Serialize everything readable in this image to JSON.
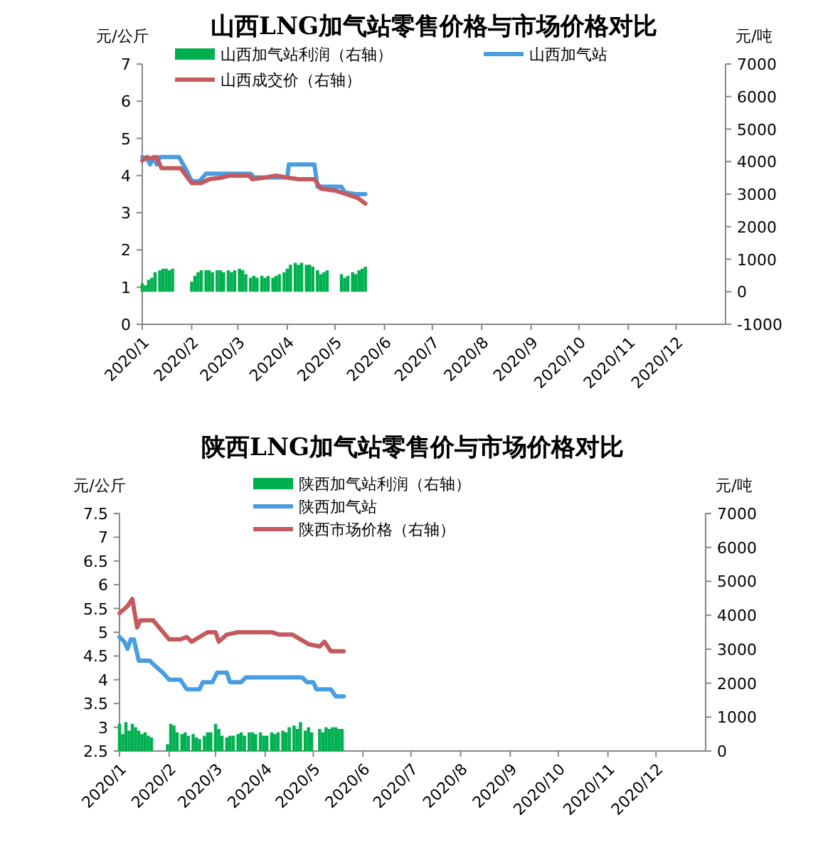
{
  "chart_data": [
    {
      "type": "line",
      "title": "山西LNG加气站零售价格与市场价格对比",
      "ylabel": "元/公斤",
      "y2label": "元/吨",
      "legend": "top",
      "xlim": [
        "2020-01-01",
        "2021-01-01"
      ],
      "xticks": [
        {
          "value": "2020-01-01",
          "label": "2020/1"
        },
        {
          "value": "2020-02-01",
          "label": "2020/2"
        },
        {
          "value": "2020-03-01",
          "label": "2020/3"
        },
        {
          "value": "2020-04-01",
          "label": "2020/4"
        },
        {
          "value": "2020-05-01",
          "label": "2020/5"
        },
        {
          "value": "2020-06-01",
          "label": "2020/6"
        },
        {
          "value": "2020-07-01",
          "label": "2020/7"
        },
        {
          "value": "2020-08-01",
          "label": "2020/8"
        },
        {
          "value": "2020-09-01",
          "label": "2020/9"
        },
        {
          "value": "2020-10-01",
          "label": "2020/10"
        },
        {
          "value": "2020-11-01",
          "label": "2020/11"
        },
        {
          "value": "2020-12-01",
          "label": "2020/12"
        }
      ],
      "ylim": [
        0,
        7
      ],
      "yticks": [
        0,
        1,
        2,
        3,
        4,
        5,
        6,
        7
      ],
      "y2lim": [
        -1000,
        7000
      ],
      "y2ticks": [
        -1000,
        0,
        1000,
        2000,
        3000,
        4000,
        5000,
        6000,
        7000
      ],
      "series": [
        {
          "name": "山西加气站利润（右轴）",
          "type": "bar",
          "axis": "y2",
          "color": "#00b050",
          "x": [
            "2020-01-01",
            "2020-01-03",
            "2020-01-05",
            "2020-01-07",
            "2020-01-09",
            "2020-01-12",
            "2020-01-14",
            "2020-01-16",
            "2020-01-18",
            "2020-01-20",
            "2020-02-01",
            "2020-02-03",
            "2020-02-05",
            "2020-02-07",
            "2020-02-10",
            "2020-02-12",
            "2020-02-14",
            "2020-02-17",
            "2020-02-19",
            "2020-02-21",
            "2020-02-24",
            "2020-02-26",
            "2020-02-28",
            "2020-03-02",
            "2020-03-04",
            "2020-03-06",
            "2020-03-09",
            "2020-03-11",
            "2020-03-13",
            "2020-03-16",
            "2020-03-18",
            "2020-03-20",
            "2020-03-23",
            "2020-03-25",
            "2020-03-27",
            "2020-03-30",
            "2020-04-01",
            "2020-04-03",
            "2020-04-06",
            "2020-04-08",
            "2020-04-10",
            "2020-04-13",
            "2020-04-15",
            "2020-04-17",
            "2020-04-20",
            "2020-04-22",
            "2020-04-24",
            "2020-04-26",
            "2020-05-05",
            "2020-05-07",
            "2020-05-09",
            "2020-05-12",
            "2020-05-14",
            "2020-05-16",
            "2020-05-18",
            "2020-05-20"
          ],
          "values": [
            260,
            200,
            370,
            430,
            600,
            660,
            710,
            710,
            660,
            710,
            310,
            490,
            600,
            660,
            660,
            660,
            600,
            660,
            660,
            600,
            660,
            600,
            660,
            710,
            660,
            540,
            430,
            490,
            430,
            490,
            430,
            490,
            430,
            490,
            540,
            600,
            710,
            830,
            890,
            830,
            890,
            830,
            830,
            770,
            660,
            540,
            600,
            660,
            540,
            430,
            490,
            600,
            540,
            660,
            710,
            770
          ]
        },
        {
          "name": "山西加气站",
          "color": "#4a9de0",
          "x": [
            "2020-01-01",
            "2020-01-04",
            "2020-01-06",
            "2020-01-08",
            "2020-01-10",
            "2020-01-12",
            "2020-01-24",
            "2020-01-28",
            "2020-02-01",
            "2020-02-06",
            "2020-02-10",
            "2020-03-09",
            "2020-03-11",
            "2020-04-01",
            "2020-04-02",
            "2020-04-18",
            "2020-04-20",
            "2020-05-05",
            "2020-05-07",
            "2020-05-14",
            "2020-05-20"
          ],
          "values": [
            4.5,
            4.45,
            4.3,
            4.5,
            4.3,
            4.5,
            4.5,
            4.2,
            3.85,
            3.85,
            4.05,
            4.05,
            3.95,
            3.95,
            4.3,
            4.3,
            3.7,
            3.7,
            3.55,
            3.5,
            3.5
          ]
        },
        {
          "name": "山西成交价（右轴）",
          "axis": "y2",
          "color": "#c45a5e",
          "x": [
            "2020-01-01",
            "2020-01-04",
            "2020-01-07",
            "2020-01-10",
            "2020-01-13",
            "2020-01-25",
            "2020-02-01",
            "2020-02-07",
            "2020-02-12",
            "2020-02-20",
            "2020-02-25",
            "2020-03-08",
            "2020-03-10",
            "2020-03-18",
            "2020-03-25",
            "2020-04-01",
            "2020-04-08",
            "2020-04-18",
            "2020-04-22",
            "2020-05-01",
            "2020-05-08",
            "2020-05-15",
            "2020-05-20"
          ],
          "values": [
            4030,
            4140,
            4090,
            4140,
            3800,
            3800,
            3340,
            3340,
            3460,
            3510,
            3570,
            3570,
            3460,
            3510,
            3570,
            3510,
            3460,
            3460,
            3170,
            3110,
            3000,
            2890,
            2710
          ]
        }
      ]
    },
    {
      "type": "line",
      "title": "陕西LNG加气站零售价与市场价格对比",
      "ylabel": "元/公斤",
      "y2label": "元/吨",
      "legend": "top",
      "xlim": [
        "2020-01-01",
        "2021-01-01"
      ],
      "xticks": [
        {
          "value": "2020-01-01",
          "label": "2020/1"
        },
        {
          "value": "2020-02-01",
          "label": "2020/2"
        },
        {
          "value": "2020-03-01",
          "label": "2020/3"
        },
        {
          "value": "2020-04-01",
          "label": "2020/4"
        },
        {
          "value": "2020-05-01",
          "label": "2020/5"
        },
        {
          "value": "2020-06-01",
          "label": "2020/6"
        },
        {
          "value": "2020-07-01",
          "label": "2020/7"
        },
        {
          "value": "2020-08-01",
          "label": "2020/8"
        },
        {
          "value": "2020-09-01",
          "label": "2020/9"
        },
        {
          "value": "2020-10-01",
          "label": "2020/10"
        },
        {
          "value": "2020-11-01",
          "label": "2020/11"
        },
        {
          "value": "2020-12-01",
          "label": "2020/12"
        }
      ],
      "ylim": [
        2.5,
        7.5
      ],
      "yticks": [
        2.5,
        3,
        3.5,
        4,
        4.5,
        5,
        5.5,
        6,
        6.5,
        7,
        7.5
      ],
      "y2lim": [
        0,
        7000
      ],
      "y2ticks": [
        0,
        1000,
        2000,
        3000,
        4000,
        5000,
        6000,
        7000
      ],
      "series": [
        {
          "name": "陕西加气站利润（右轴）",
          "type": "bar",
          "axis": "y2",
          "color": "#00b050",
          "x": [
            "2020-01-01",
            "2020-01-03",
            "2020-01-05",
            "2020-01-07",
            "2020-01-09",
            "2020-01-11",
            "2020-01-13",
            "2020-01-15",
            "2020-01-17",
            "2020-01-19",
            "2020-01-21",
            "2020-01-31",
            "2020-02-02",
            "2020-02-04",
            "2020-02-06",
            "2020-02-09",
            "2020-02-11",
            "2020-02-13",
            "2020-02-16",
            "2020-02-18",
            "2020-02-20",
            "2020-02-23",
            "2020-02-25",
            "2020-02-27",
            "2020-03-01",
            "2020-03-03",
            "2020-03-05",
            "2020-03-08",
            "2020-03-10",
            "2020-03-12",
            "2020-03-15",
            "2020-03-17",
            "2020-03-19",
            "2020-03-22",
            "2020-03-24",
            "2020-03-26",
            "2020-03-29",
            "2020-03-31",
            "2020-04-02",
            "2020-04-05",
            "2020-04-07",
            "2020-04-09",
            "2020-04-12",
            "2020-04-14",
            "2020-04-16",
            "2020-04-19",
            "2020-04-21",
            "2020-04-23",
            "2020-04-26",
            "2020-04-28",
            "2020-04-30",
            "2020-05-05",
            "2020-05-07",
            "2020-05-09",
            "2020-05-11",
            "2020-05-13",
            "2020-05-15",
            "2020-05-17",
            "2020-05-19"
          ],
          "values": [
            800,
            500,
            850,
            600,
            800,
            700,
            600,
            500,
            550,
            450,
            400,
            200,
            800,
            750,
            550,
            500,
            550,
            450,
            500,
            400,
            350,
            450,
            550,
            550,
            800,
            650,
            450,
            400,
            450,
            450,
            500,
            550,
            450,
            550,
            550,
            500,
            550,
            450,
            450,
            550,
            500,
            550,
            600,
            550,
            700,
            750,
            650,
            850,
            600,
            700,
            550,
            650,
            550,
            700,
            650,
            700,
            700,
            650,
            650
          ]
        },
        {
          "name": "陕西加气站",
          "color": "#4a9de0",
          "x": [
            "2020-01-01",
            "2020-01-04",
            "2020-01-06",
            "2020-01-08",
            "2020-01-10",
            "2020-01-13",
            "2020-01-20",
            "2020-01-23",
            "2020-01-28",
            "2020-02-01",
            "2020-02-08",
            "2020-02-12",
            "2020-02-20",
            "2020-02-22",
            "2020-02-28",
            "2020-03-02",
            "2020-03-08",
            "2020-03-10",
            "2020-03-17",
            "2020-03-20",
            "2020-04-24",
            "2020-04-27",
            "2020-05-01",
            "2020-05-03",
            "2020-05-12",
            "2020-05-15",
            "2020-05-20"
          ],
          "values": [
            4.9,
            4.8,
            4.65,
            4.85,
            4.85,
            4.4,
            4.4,
            4.3,
            4.15,
            4.0,
            4.0,
            3.8,
            3.8,
            3.95,
            3.95,
            4.15,
            4.15,
            3.95,
            3.95,
            4.05,
            4.05,
            3.95,
            3.95,
            3.8,
            3.8,
            3.65,
            3.65
          ]
        },
        {
          "name": "陕西市场价格（右轴）",
          "axis": "y2",
          "color": "#c45a5e",
          "x": [
            "2020-01-01",
            "2020-01-06",
            "2020-01-09",
            "2020-01-12",
            "2020-01-14",
            "2020-01-22",
            "2020-02-01",
            "2020-02-08",
            "2020-02-12",
            "2020-02-15",
            "2020-02-25",
            "2020-03-01",
            "2020-03-03",
            "2020-03-08",
            "2020-03-15",
            "2020-04-05",
            "2020-04-10",
            "2020-04-18",
            "2020-04-28",
            "2020-05-05",
            "2020-05-08",
            "2020-05-12",
            "2020-05-20"
          ],
          "values": [
            4060,
            4270,
            4480,
            3640,
            3850,
            3850,
            3290,
            3290,
            3360,
            3220,
            3500,
            3500,
            3220,
            3430,
            3500,
            3500,
            3430,
            3430,
            3150,
            3080,
            3220,
            2940,
            2940
          ]
        }
      ]
    }
  ]
}
